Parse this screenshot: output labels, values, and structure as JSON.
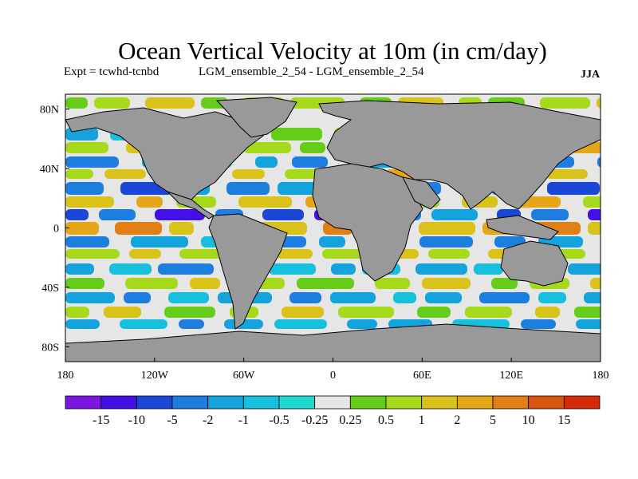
{
  "title": "Ocean Vertical Velocity at 10m (in cm/day)",
  "experiment": "Expt = tcwhd-tcnbd",
  "runs": "LGM_ensemble_2_54 - LGM_ensemble_2_54",
  "season": "JJA",
  "colors": {
    "land": "#999999",
    "neutral": "#e6e6e6",
    "ocean_bands": [
      "#7d15e0",
      "#4310e6",
      "#1a47d6",
      "#1d7ee0",
      "#14a3dc",
      "#16bfdc",
      "#21d9cc",
      "#e6e6e6",
      "#66cc1a",
      "#a6d91a",
      "#d9c21a",
      "#e6a61a",
      "#e07f15",
      "#d9550f",
      "#d42a0a"
    ]
  },
  "chart_data": {
    "type": "heatmap",
    "x_ticks": [
      "180",
      "120W",
      "60W",
      "0",
      "60E",
      "120E",
      "180"
    ],
    "y_ticks": [
      "80N",
      "40N",
      "0",
      "40S",
      "80S"
    ],
    "colorbar_levels": [
      "-15",
      "-10",
      "-5",
      "-2",
      "-1",
      "-0.5",
      "-0.25",
      "0.25",
      "0.5",
      "1",
      "2",
      "5",
      "10",
      "15"
    ]
  }
}
